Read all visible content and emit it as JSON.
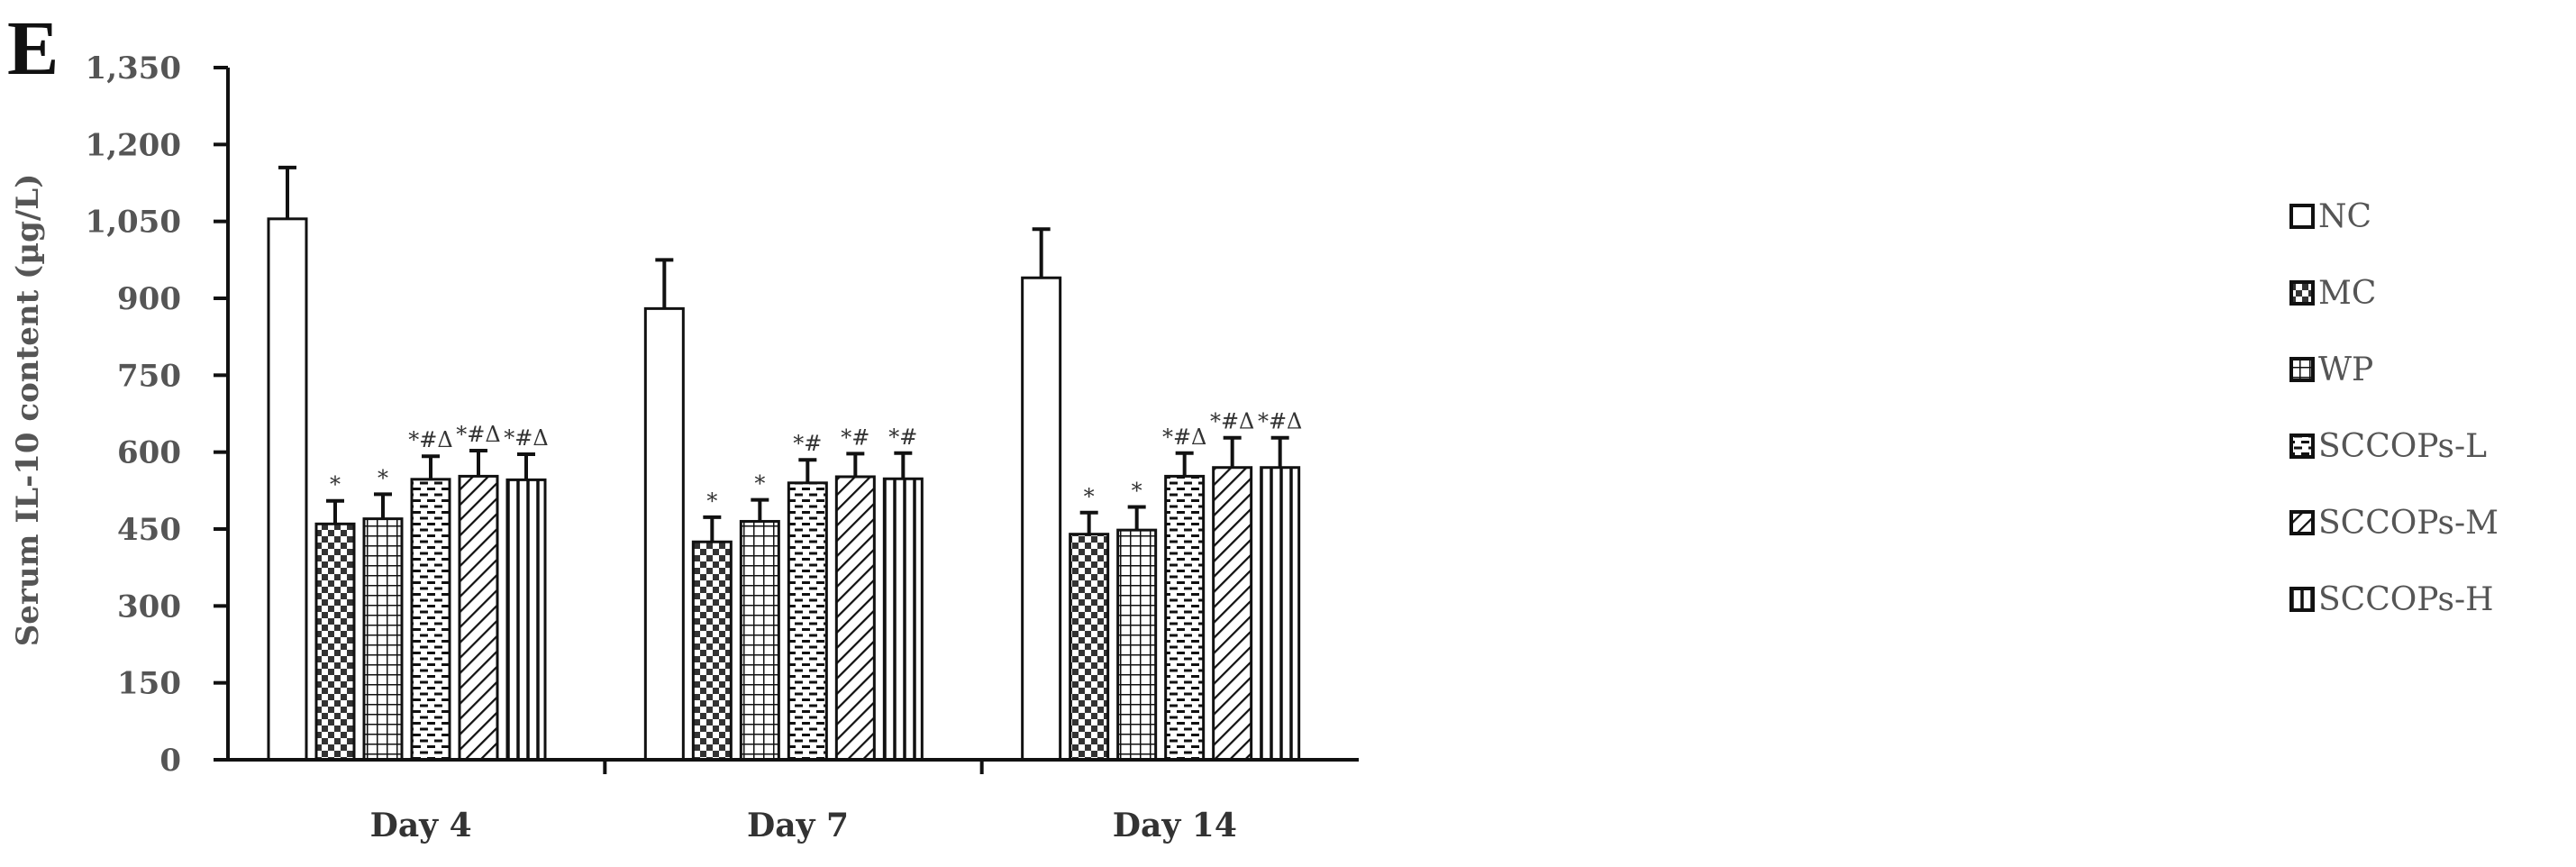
{
  "panel_label": "E",
  "chart_data": {
    "type": "bar",
    "ylabel": "Serum IL-10 content (µg/L)",
    "ylim": [
      0,
      1350
    ],
    "yticks": [
      "0",
      "150",
      "300",
      "450",
      "600",
      "750",
      "900",
      "1,050",
      "1,200",
      "1,350"
    ],
    "ytick_values": [
      0,
      150,
      300,
      450,
      600,
      750,
      900,
      1050,
      1200,
      1350
    ],
    "categories": [
      "Day 4",
      "Day 7",
      "Day 14"
    ],
    "legend_position": "right",
    "series": [
      {
        "name": "NC",
        "pattern": "blank",
        "values": [
          1055,
          880,
          940
        ],
        "errors": [
          100,
          95,
          95
        ],
        "annotations": [
          "",
          "",
          ""
        ]
      },
      {
        "name": "MC",
        "pattern": "checker",
        "values": [
          460,
          425,
          440
        ],
        "errors": [
          45,
          48,
          42
        ],
        "annotations": [
          "*",
          "*",
          "*"
        ]
      },
      {
        "name": "WP",
        "pattern": "grid",
        "values": [
          470,
          465,
          448
        ],
        "errors": [
          48,
          42,
          45
        ],
        "annotations": [
          "*",
          "*",
          "*"
        ]
      },
      {
        "name": "SCCOPs-L",
        "pattern": "dash",
        "values": [
          547,
          540,
          553
        ],
        "errors": [
          45,
          45,
          45
        ],
        "annotations": [
          "*#Δ",
          "*#",
          "*#Δ"
        ]
      },
      {
        "name": "SCCOPs-M",
        "pattern": "diagonal",
        "values": [
          553,
          552,
          570
        ],
        "errors": [
          50,
          45,
          58
        ],
        "annotations": [
          "*#Δ",
          "*#",
          "*#Δ"
        ]
      },
      {
        "name": "SCCOPs-H",
        "pattern": "vertical",
        "values": [
          546,
          548,
          570
        ],
        "errors": [
          50,
          50,
          58
        ],
        "annotations": [
          "*#Δ",
          "*#",
          "*#Δ"
        ]
      }
    ]
  }
}
